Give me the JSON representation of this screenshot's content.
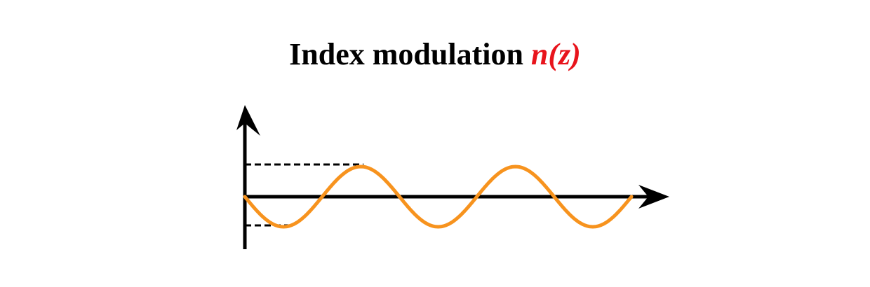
{
  "title": {
    "text": "Index modulation ",
    "formula": "n(z)",
    "formula_color": "#e8141c"
  },
  "colors": {
    "axis": "#000000",
    "wave": "#f7931e",
    "dashed_guide": "#000000"
  },
  "diagram": {
    "wave_periods_shown": 2.5,
    "wave_shape": "sine starting at zero going negative",
    "guides": [
      "max-level dashed line",
      "min-level dashed line"
    ]
  }
}
